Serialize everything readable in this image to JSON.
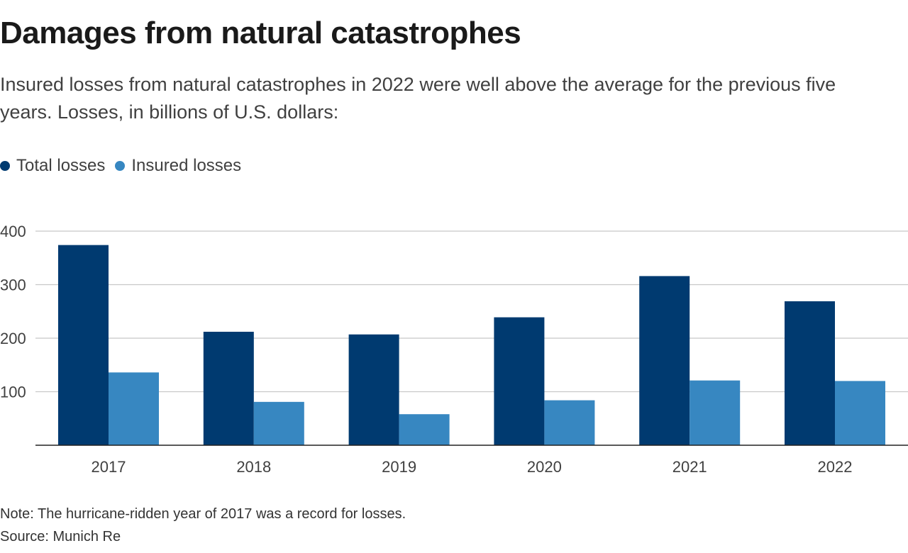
{
  "header": {
    "title": "Damages from natural catastrophes",
    "subtitle": "Insured losses from natural catastrophes in 2022 were well above the average for the previous five years. Losses, in billions of U.S. dollars:"
  },
  "footer": {
    "note": "Note: The hurricane-ridden year of 2017 was a record for losses.",
    "source": "Source: Munich Re"
  },
  "chart_data": {
    "type": "bar",
    "title": "Damages from natural catastrophes",
    "subtitle": "Insured losses from natural catastrophes in 2022 were well above the average for the previous five years. Losses, in billions of U.S. dollars:",
    "categories": [
      "2017",
      "2018",
      "2019",
      "2020",
      "2021",
      "2022"
    ],
    "series": [
      {
        "name": "Total losses",
        "color": "#003a70",
        "values": [
          374,
          212,
          207,
          239,
          316,
          269
        ]
      },
      {
        "name": "Insured losses",
        "color": "#3787c1",
        "values": [
          136,
          81,
          58,
          84,
          121,
          120
        ]
      }
    ],
    "ylim": [
      0,
      400
    ],
    "yticks": [
      100,
      200,
      300,
      400
    ],
    "grid": true,
    "legend_position": "top-left",
    "xlabel": "",
    "ylabel": ""
  }
}
